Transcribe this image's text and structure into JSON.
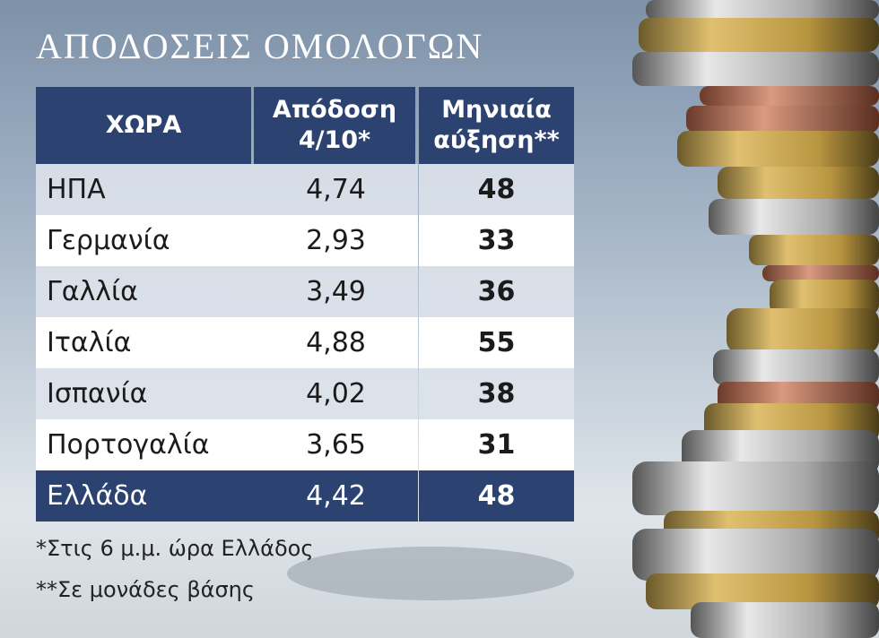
{
  "header": {
    "title": "ΑΠΟΔΟΣΕΙΣ ΟΜΟΛΟΓΩΝ"
  },
  "table": {
    "columns": [
      "ΧΩΡΑ",
      "Απόδοση 4/10*",
      "Μηνιαία αύξηση**"
    ],
    "rows": [
      [
        "ΗΠΑ",
        "4,74",
        "48"
      ],
      [
        "Γερμανία",
        "2,93",
        "33"
      ],
      [
        "Γαλλία",
        "3,49",
        "36"
      ],
      [
        "Ιταλία",
        "4,88",
        "55"
      ],
      [
        "Ισπανία",
        "4,02",
        "38"
      ],
      [
        "Πορτογαλία",
        "3,65",
        "31"
      ],
      [
        "Ελλάδα",
        "4,42",
        "48"
      ]
    ]
  },
  "footnotes": [
    "*Στις 6 μ.μ. ώρα Ελλάδος",
    "**Σε μονάδες βάσης"
  ]
}
